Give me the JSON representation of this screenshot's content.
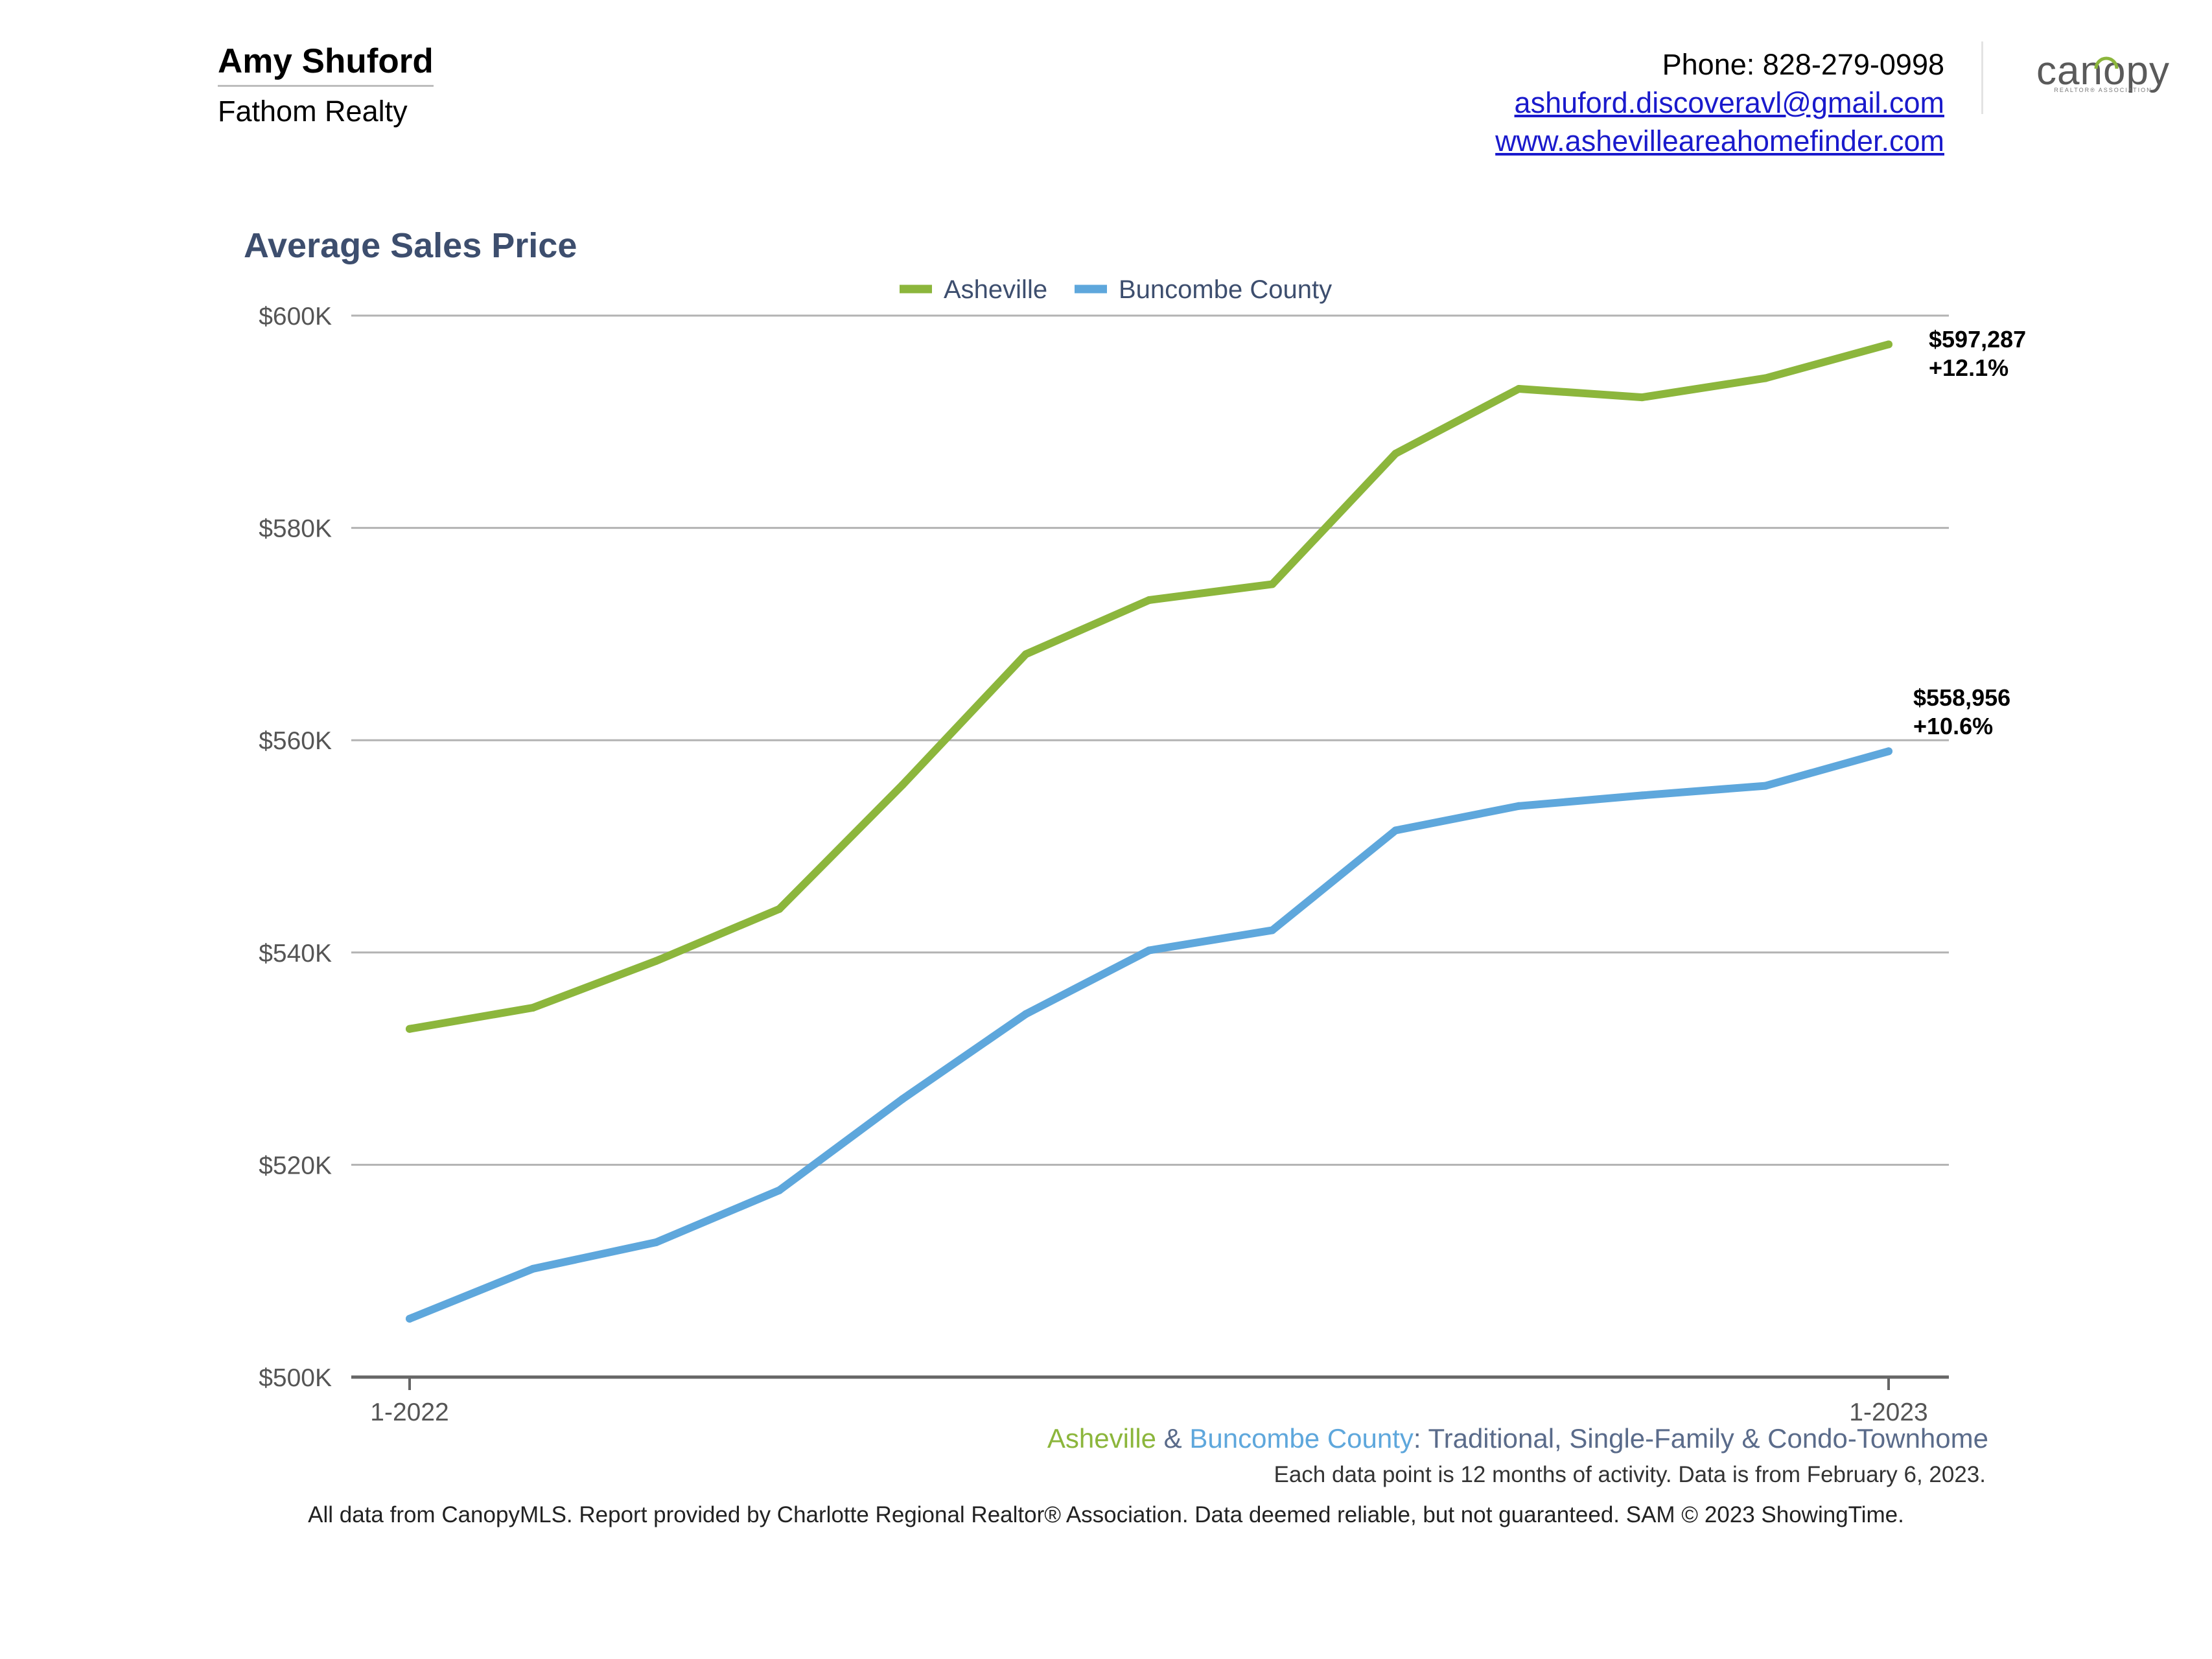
{
  "header": {
    "agent_name": "Amy Shuford",
    "agency": "Fathom Realty",
    "phone": "Phone: 828-279-0998",
    "email": "ashuford.discoveravl@gmail.com",
    "website": "www.ashevilleareahomefinder.com",
    "logo_text": "canopy",
    "logo_subtext": "REALTOR® ASSOCIATION"
  },
  "colors": {
    "asheville": "#8cb63c",
    "buncombe": "#5ea7dc",
    "title": "#3d4e6e"
  },
  "chart_data": {
    "type": "line",
    "title": "Average Sales Price",
    "x": [
      "1-2022",
      "2-2022",
      "3-2022",
      "4-2022",
      "5-2022",
      "6-2022",
      "7-2022",
      "8-2022",
      "9-2022",
      "10-2022",
      "11-2022",
      "12-2022",
      "1-2023"
    ],
    "x_tick_labels": [
      "1-2022",
      "1-2023"
    ],
    "y_ticks": [
      500000,
      520000,
      540000,
      560000,
      580000,
      600000
    ],
    "y_tick_labels": [
      "$500K",
      "$520K",
      "$540K",
      "$560K",
      "$580K",
      "$600K"
    ],
    "ylim": [
      500000,
      600000
    ],
    "grid": true,
    "legend_position": "top-center",
    "series": [
      {
        "name": "Asheville",
        "color": "#8cb63c",
        "values": [
          532800,
          534800,
          539200,
          544100,
          555800,
          568100,
          573200,
          574700,
          587000,
          593100,
          592300,
          594100,
          597287
        ],
        "end_value_label": "$597,287",
        "end_change_label": "+12.1%"
      },
      {
        "name": "Buncombe County",
        "color": "#5ea7dc",
        "values": [
          505500,
          510200,
          512700,
          517600,
          526200,
          534200,
          540200,
          542100,
          551500,
          553800,
          554800,
          555700,
          558956
        ],
        "end_value_label": "$558,956",
        "end_change_label": "+10.6%"
      }
    ]
  },
  "subtitle": {
    "series_a": "Asheville",
    "amp": " & ",
    "series_b": "Buncombe County",
    "rest": ": Traditional, Single-Family & Condo-Townhome"
  },
  "note": "Each data point is 12 months of activity. Data is from February 6, 2023.",
  "footer": "All data from CanopyMLS. Report provided by Charlotte Regional Realtor® Association. Data deemed reliable, but not guaranteed. SAM © 2023 ShowingTime."
}
